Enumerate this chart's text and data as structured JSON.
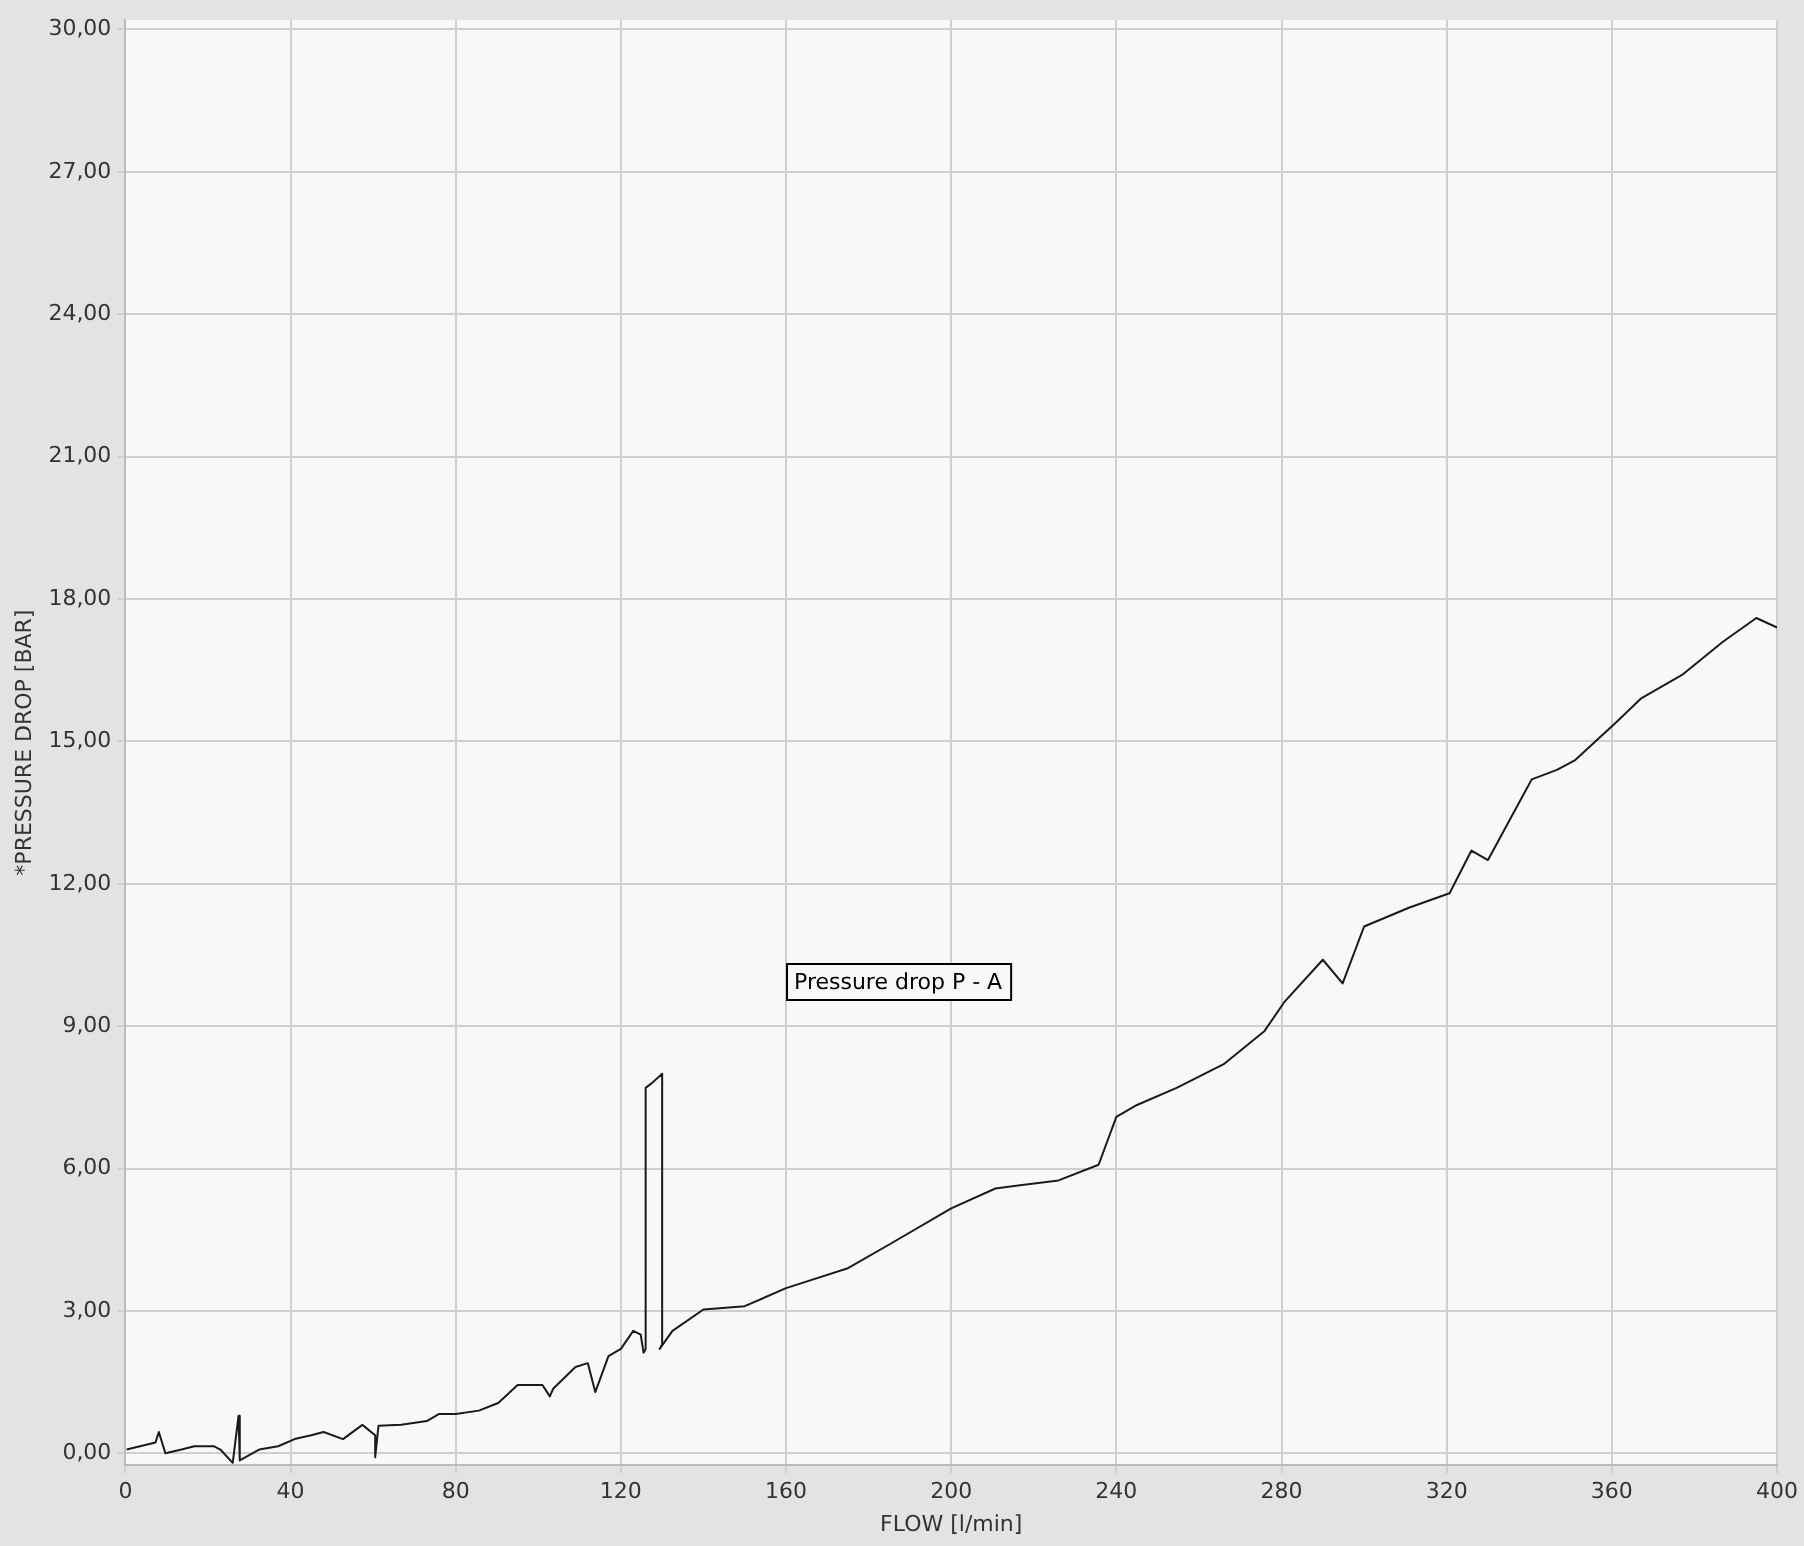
{
  "chart_data": {
    "type": "line",
    "xlabel": "FLOW [l/min]",
    "ylabel": "*PRESSURE DROP [BAR]",
    "annotations": [
      "Pressure drop P - A"
    ],
    "xlim": [
      0,
      400
    ],
    "ylim": [
      -0.25,
      30.2
    ],
    "xticks": [
      0,
      40,
      80,
      120,
      160,
      200,
      240,
      280,
      320,
      360,
      400
    ],
    "yticks": [
      {
        "value": 0,
        "label": "0,00"
      },
      {
        "value": 3,
        "label": "3,00"
      },
      {
        "value": 6,
        "label": "6,00"
      },
      {
        "value": 9,
        "label": "9,00"
      },
      {
        "value": 12,
        "label": "12,00"
      },
      {
        "value": 15,
        "label": "15,00"
      },
      {
        "value": 18,
        "label": "18,00"
      },
      {
        "value": 21,
        "label": "21,00"
      },
      {
        "value": 24,
        "label": "24,00"
      },
      {
        "value": 27,
        "label": "27,00"
      },
      {
        "value": 30,
        "label": "30,00"
      }
    ],
    "grid": true,
    "legend": false,
    "marker": "none",
    "line_style": "solid",
    "series": [
      {
        "color": "#1a1a1a",
        "x": [
          0.3,
          7.3,
          8.1,
          9.7,
          13.6,
          16.7,
          21.4,
          23,
          26,
          27.4,
          27.7,
          32.4,
          37,
          41,
          45,
          48,
          52.7,
          57.4,
          60.5,
          60.5,
          61.3,
          66.8,
          73,
          76,
          80,
          85.6,
          90.3,
          95,
          101,
          102.8,
          103.6,
          109,
          112,
          113.8,
          117,
          120,
          123,
          124.8,
          125.5,
          126,
          126,
          127.5,
          130,
          130,
          129.4,
          132.5,
          140,
          150,
          160,
          175,
          185,
          200,
          210.7,
          226,
          235.7,
          240,
          245,
          254.6,
          266,
          275.9,
          280.6,
          290,
          294.8,
          300,
          311,
          320.7,
          326,
          330,
          340.6,
          346.7,
          351,
          361,
          367,
          377,
          386.9,
          395,
          400
        ],
        "values": [
          0.08,
          0.23,
          0.45,
          0,
          0.08,
          0.15,
          0.15,
          0.08,
          -0.2,
          0.79,
          -0.15,
          0.08,
          0.15,
          0.3,
          0.38,
          0.45,
          0.3,
          0.6,
          0.38,
          -0.08,
          0.58,
          0.6,
          0.68,
          0.83,
          0.83,
          0.9,
          1.06,
          1.44,
          1.44,
          1.2,
          1.36,
          1.82,
          1.9,
          1.29,
          2.05,
          2.2,
          2.58,
          2.5,
          2.12,
          2.2,
          7.7,
          7.8,
          8.0,
          2.3,
          2.2,
          2.58,
          3.03,
          3.1,
          3.48,
          3.9,
          4.4,
          5.16,
          5.58,
          5.75,
          6.08,
          7.09,
          7.34,
          7.7,
          8.2,
          8.9,
          9.5,
          10.4,
          9.9,
          11.1,
          11.5,
          11.8,
          12.7,
          12.5,
          14.2,
          14.4,
          14.6,
          15.4,
          15.9,
          16.4,
          17.1,
          17.6,
          17.4
        ]
      }
    ]
  }
}
